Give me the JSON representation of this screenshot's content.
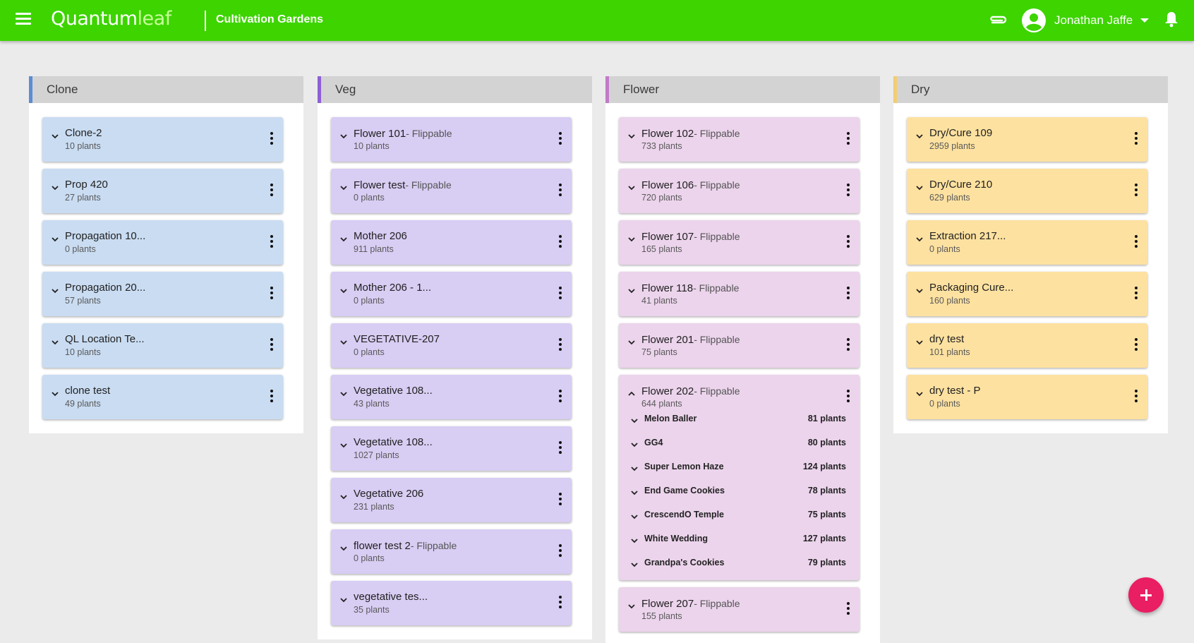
{
  "header": {
    "logo_primary": "Quantum",
    "logo_secondary": "leaf",
    "org_name": "Cultivation Gardens",
    "user_name": "Jonathan Jaffe",
    "accent_color": "#3dd400",
    "icons": [
      "menu-icon",
      "attachment-icon",
      "account-circle-icon",
      "arrow-drop-down-icon",
      "bell-icon"
    ]
  },
  "flippable_suffix": "- Flippable",
  "columns": [
    {
      "title": "Clone",
      "accent": "#5b8cd6",
      "card_color": "#c9dcf2",
      "cards": [
        {
          "name": "Clone-2",
          "count": "10 plants",
          "flippable": false
        },
        {
          "name": "Prop 420",
          "count": "27 plants",
          "flippable": false
        },
        {
          "name": "Propagation 10...",
          "count": "0 plants",
          "flippable": false
        },
        {
          "name": "Propagation 20...",
          "count": "57 plants",
          "flippable": false
        },
        {
          "name": "QL Location Te...",
          "count": "10 plants",
          "flippable": false
        },
        {
          "name": "clone test",
          "count": "49 plants",
          "flippable": false
        }
      ]
    },
    {
      "title": "Veg",
      "accent": "#8e5fd6",
      "card_color": "#d8cdf3",
      "cards": [
        {
          "name": "Flower 101",
          "count": "10 plants",
          "flippable": true
        },
        {
          "name": "Flower test",
          "count": "0 plants",
          "flippable": true
        },
        {
          "name": "Mother 206",
          "count": "911 plants",
          "flippable": false
        },
        {
          "name": "Mother 206 - 1...",
          "count": "0 plants",
          "flippable": false
        },
        {
          "name": "VEGETATIVE-207",
          "count": "0 plants",
          "flippable": false
        },
        {
          "name": "Vegetative 108...",
          "count": "43 plants",
          "flippable": false
        },
        {
          "name": "Vegetative 108...",
          "count": "1027 plants",
          "flippable": false
        },
        {
          "name": "Vegetative 206",
          "count": "231 plants",
          "flippable": false
        },
        {
          "name": "flower test 2",
          "count": "0 plants",
          "flippable": true
        },
        {
          "name": "vegetative tes...",
          "count": "35 plants",
          "flippable": false
        }
      ]
    },
    {
      "title": "Flower",
      "accent": "#c27ac9",
      "card_color": "#ecd4ec",
      "cards": [
        {
          "name": "Flower 102",
          "count": "733 plants",
          "flippable": true
        },
        {
          "name": "Flower 106",
          "count": "720 plants",
          "flippable": true
        },
        {
          "name": "Flower 107",
          "count": "165 plants",
          "flippable": true
        },
        {
          "name": "Flower 118",
          "count": "41 plants",
          "flippable": true
        },
        {
          "name": "Flower 201",
          "count": "75 plants",
          "flippable": true
        },
        {
          "name": "Flower 202",
          "count": "644 plants",
          "flippable": true,
          "expanded": true,
          "strains": [
            {
              "name": "Melon Baller",
              "count": "81 plants"
            },
            {
              "name": "GG4",
              "count": "80 plants"
            },
            {
              "name": "Super Lemon Haze",
              "count": "124 plants"
            },
            {
              "name": "End Game Cookies",
              "count": "78 plants"
            },
            {
              "name": "CrescendO Temple",
              "count": "75 plants"
            },
            {
              "name": "White Wedding",
              "count": "127 plants"
            },
            {
              "name": "Grandpa's Cookies",
              "count": "79 plants"
            }
          ]
        },
        {
          "name": "Flower 207",
          "count": "155 plants",
          "flippable": true
        }
      ]
    },
    {
      "title": "Dry",
      "accent": "#f2cd72",
      "card_color": "#fde1a0",
      "cards": [
        {
          "name": "Dry/Cure 109",
          "count": "2959 plants",
          "flippable": false
        },
        {
          "name": "Dry/Cure 210",
          "count": "629 plants",
          "flippable": false
        },
        {
          "name": "Extraction 217...",
          "count": "0 plants",
          "flippable": false
        },
        {
          "name": "Packaging Cure...",
          "count": "160 plants",
          "flippable": false
        },
        {
          "name": "dry test",
          "count": "101 plants",
          "flippable": false
        },
        {
          "name": "dry test - P",
          "count": "0 plants",
          "flippable": false
        }
      ]
    }
  ],
  "fab_color": "#e91e63"
}
